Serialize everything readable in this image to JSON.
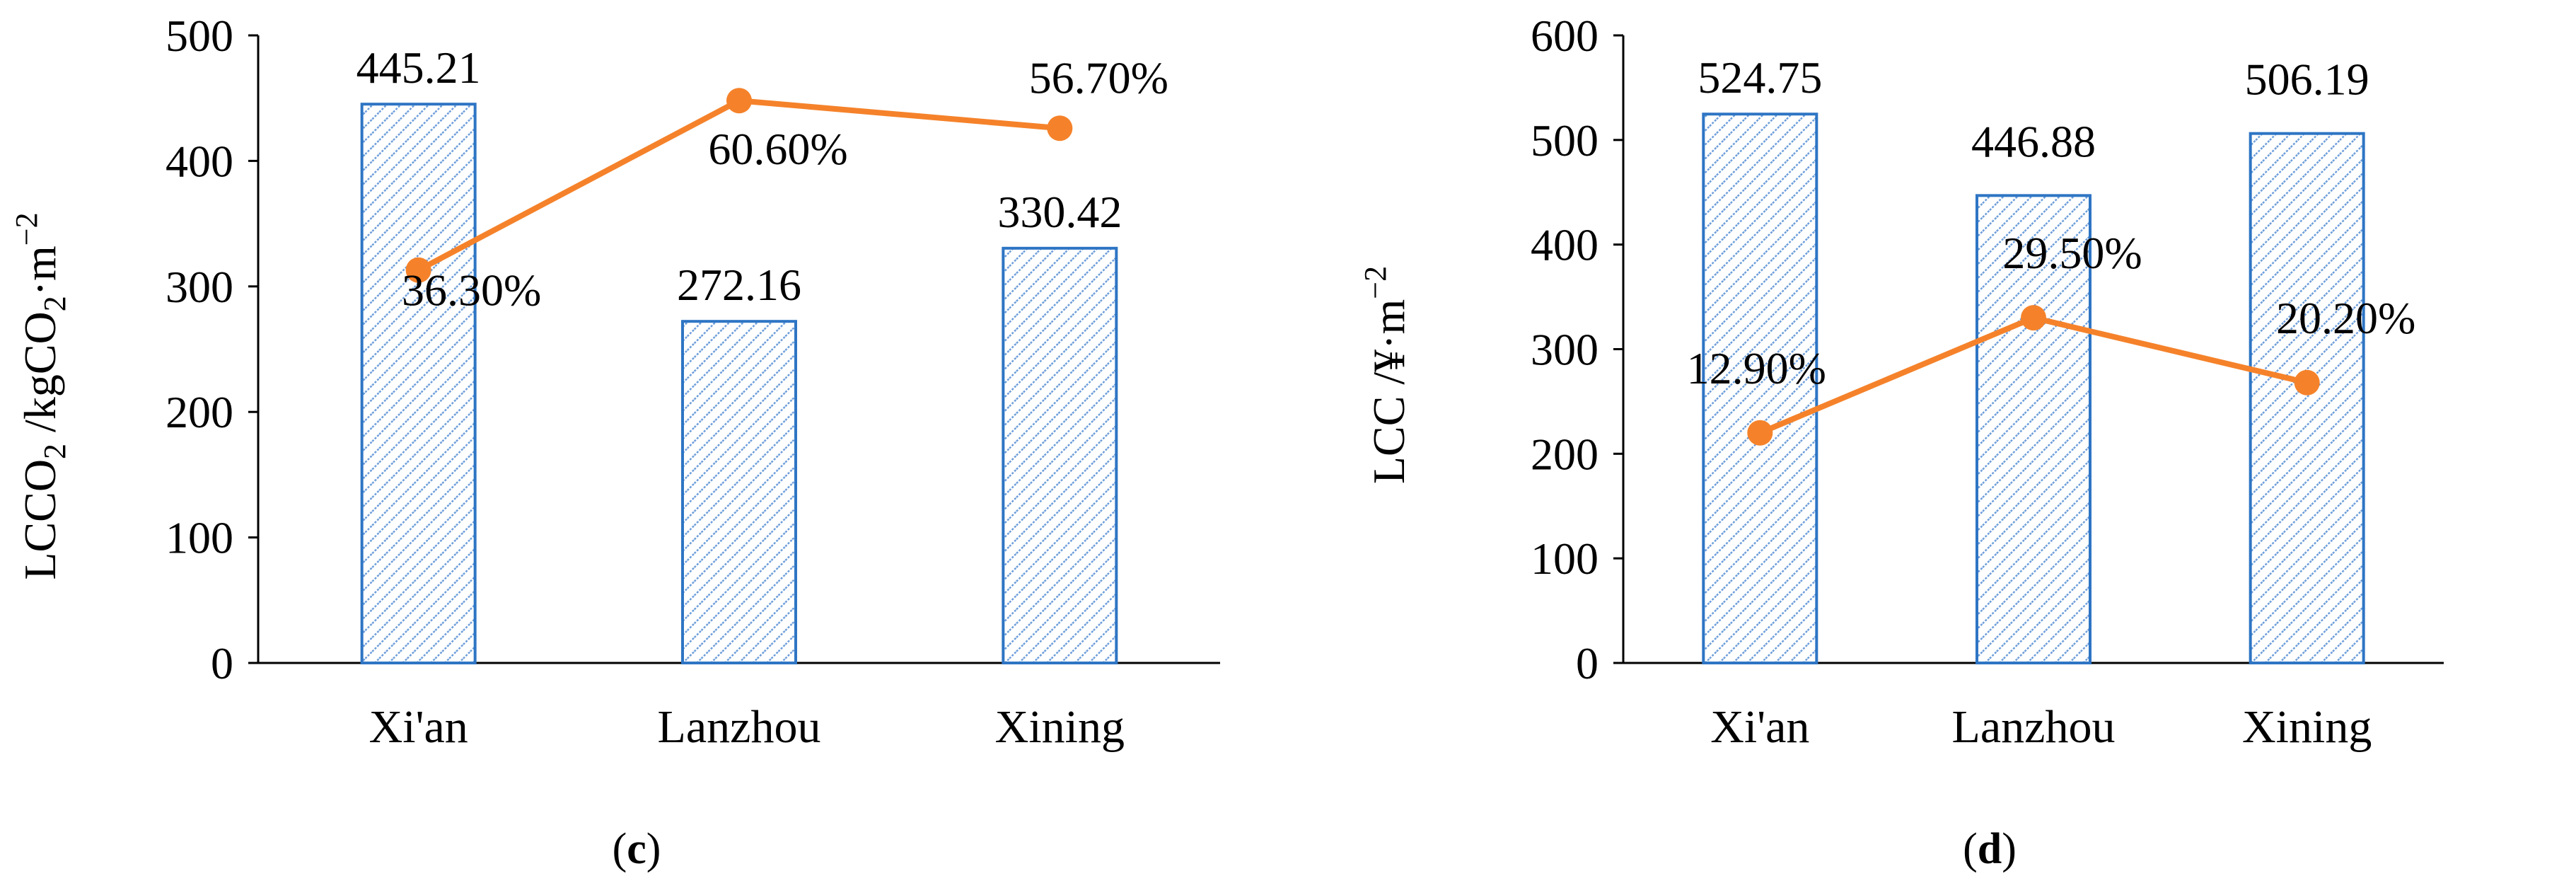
{
  "colors": {
    "bar_stroke": "#2e75c4",
    "hatch": "#6e9ed9",
    "line": "#f5822a",
    "axis": "#000000"
  },
  "chart_data": [
    {
      "id": "c",
      "type": "bar",
      "panel_label": "c",
      "ylabel": {
        "main": "LCCO",
        "sub1": "2",
        "mid": " /kgCO",
        "sub2": "2",
        "end": "·m",
        "sup": "−2"
      },
      "ylim": [
        0,
        500
      ],
      "yticks": [
        "0",
        "100",
        "200",
        "300",
        "400",
        "500"
      ],
      "categories": [
        "Xi'an",
        "Lanzhou",
        "Xining"
      ],
      "values": [
        445.21,
        272.16,
        330.42
      ],
      "value_labels": [
        "445.21",
        "272.16",
        "330.42"
      ],
      "line_series": {
        "values": [
          313,
          448,
          426
        ],
        "labels": [
          "36.30%",
          "60.60%",
          "56.70%"
        ]
      }
    },
    {
      "id": "d",
      "type": "bar",
      "panel_label": "d",
      "ylabel": {
        "main": "LCC /¥·m",
        "sup": "−2"
      },
      "ylim": [
        0,
        600
      ],
      "yticks": [
        "0",
        "100",
        "200",
        "300",
        "400",
        "500",
        "600"
      ],
      "categories": [
        "Xi'an",
        "Lanzhou",
        "Xining"
      ],
      "values": [
        524.75,
        446.88,
        506.19
      ],
      "value_labels": [
        "524.75",
        "446.88",
        "506.19"
      ],
      "line_series": {
        "values": [
          220,
          330,
          268
        ],
        "labels": [
          "12.90%",
          "29.50%",
          "20.20%"
        ]
      }
    }
  ]
}
